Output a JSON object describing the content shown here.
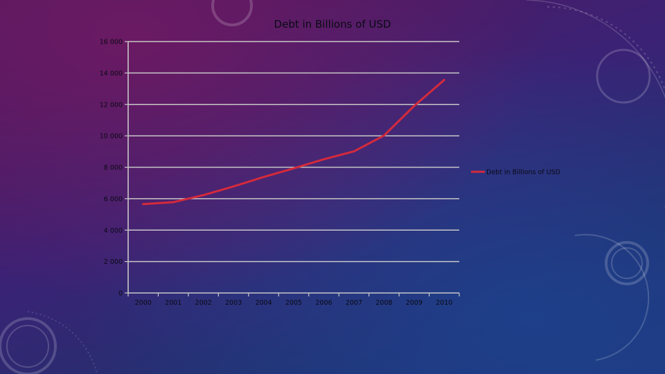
{
  "slide": {
    "background_colors": [
      "#55175a",
      "#3b2275",
      "#1d3a7e"
    ]
  },
  "chart_data": {
    "type": "line",
    "title": "Debt in Billions of USD",
    "x": [
      "2000",
      "2001",
      "2002",
      "2003",
      "2004",
      "2005",
      "2006",
      "2007",
      "2008",
      "2009",
      "2010"
    ],
    "series": [
      {
        "name": "Debt in Billions of USD",
        "color": "#d42a3c",
        "values": [
          5650,
          5780,
          6230,
          6780,
          7380,
          7930,
          8510,
          9010,
          10020,
          11900,
          13560
        ]
      }
    ],
    "ylim": [
      0,
      16000
    ],
    "yticks": [
      "0",
      "2 000",
      "4 000",
      "6 000",
      "8 000",
      "10 000",
      "12 000",
      "14 000",
      "16 000"
    ],
    "yticks_values": [
      0,
      2000,
      4000,
      6000,
      8000,
      10000,
      12000,
      14000,
      16000
    ],
    "grid": true,
    "grid_color": "#c8c8c8",
    "legend_position": "right"
  }
}
